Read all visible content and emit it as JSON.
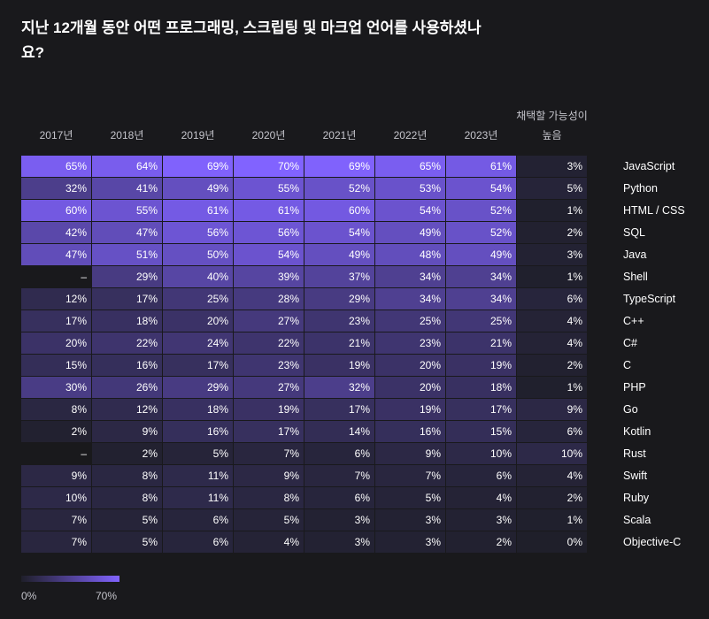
{
  "title": "지난 12개월 동안 어떤 프로그래밍, 스크립팅 및 마크업 언어를 사용하셨나요?",
  "colors": {
    "background": "#19191c",
    "low": "#1f1f2a",
    "high": "#8163ff",
    "text": "#ffffff",
    "header_text": "#c5c5cc"
  },
  "legend": {
    "min_label": "0%",
    "max_label": "70%"
  },
  "chart_data": {
    "type": "heatmap",
    "title": "지난 12개월 동안 어떤 프로그래밍, 스크립팅 및 마크업 언어를 사용하셨나요?",
    "columns": [
      "2017년",
      "2018년",
      "2019년",
      "2020년",
      "2021년",
      "2022년",
      "2023년",
      "채택할 가능성이 높음"
    ],
    "color_scale": {
      "min": 0,
      "max": 70,
      "unit": "%"
    },
    "rows": [
      {
        "label": "JavaScript",
        "values": [
          65,
          64,
          69,
          70,
          69,
          65,
          61
        ],
        "adopt": 3
      },
      {
        "label": "Python",
        "values": [
          32,
          41,
          49,
          55,
          52,
          53,
          54
        ],
        "adopt": 5
      },
      {
        "label": "HTML / CSS",
        "values": [
          60,
          55,
          61,
          61,
          60,
          54,
          52
        ],
        "adopt": 1
      },
      {
        "label": "SQL",
        "values": [
          42,
          47,
          56,
          56,
          54,
          49,
          52
        ],
        "adopt": 2
      },
      {
        "label": "Java",
        "values": [
          47,
          51,
          50,
          54,
          49,
          48,
          49
        ],
        "adopt": 3
      },
      {
        "label": "Shell",
        "values": [
          null,
          29,
          40,
          39,
          37,
          34,
          34
        ],
        "adopt": 1
      },
      {
        "label": "TypeScript",
        "values": [
          12,
          17,
          25,
          28,
          29,
          34,
          34
        ],
        "adopt": 6
      },
      {
        "label": "C++",
        "values": [
          17,
          18,
          20,
          27,
          23,
          25,
          25
        ],
        "adopt": 4
      },
      {
        "label": "C#",
        "values": [
          20,
          22,
          24,
          22,
          21,
          23,
          21
        ],
        "adopt": 4
      },
      {
        "label": "C",
        "values": [
          15,
          16,
          17,
          23,
          19,
          20,
          19
        ],
        "adopt": 2
      },
      {
        "label": "PHP",
        "values": [
          30,
          26,
          29,
          27,
          32,
          20,
          18
        ],
        "adopt": 1
      },
      {
        "label": "Go",
        "values": [
          8,
          12,
          18,
          19,
          17,
          19,
          17
        ],
        "adopt": 9
      },
      {
        "label": "Kotlin",
        "values": [
          2,
          9,
          16,
          17,
          14,
          16,
          15
        ],
        "adopt": 6
      },
      {
        "label": "Rust",
        "values": [
          null,
          2,
          5,
          7,
          6,
          9,
          10
        ],
        "adopt": 10
      },
      {
        "label": "Swift",
        "values": [
          9,
          8,
          11,
          9,
          7,
          7,
          6
        ],
        "adopt": 4
      },
      {
        "label": "Ruby",
        "values": [
          10,
          8,
          11,
          8,
          6,
          5,
          4
        ],
        "adopt": 2
      },
      {
        "label": "Scala",
        "values": [
          7,
          5,
          6,
          5,
          3,
          3,
          3
        ],
        "adopt": 1
      },
      {
        "label": "Objective-C",
        "values": [
          7,
          5,
          6,
          4,
          3,
          3,
          2
        ],
        "adopt": 0
      }
    ],
    "missing_label": "–"
  }
}
